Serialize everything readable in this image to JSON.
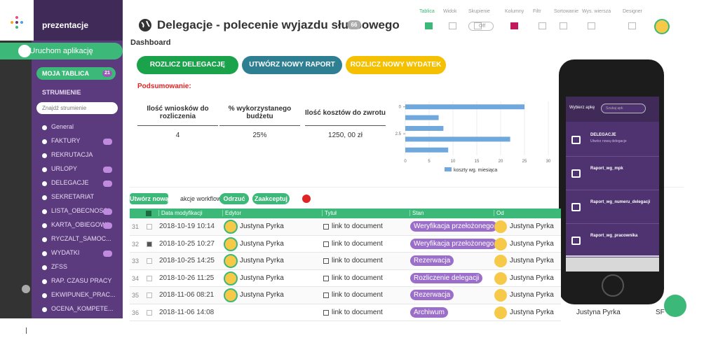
{
  "sidebar": {
    "app_name": "prezentacje",
    "launch": "Uruchom aplikację",
    "my_board": "MOJA TABLICA",
    "my_board_count": "21",
    "streams_label": "STRUMIENIE",
    "search_placeholder": "Znajdź strumienie",
    "streams": [
      {
        "name": "General"
      },
      {
        "name": "FAKTURY",
        "badge": true
      },
      {
        "name": "REKRUTACJA"
      },
      {
        "name": "URLOPY",
        "badge": true
      },
      {
        "name": "DELEGACJE",
        "badge": true
      },
      {
        "name": "SEKRETARIAT"
      },
      {
        "name": "LISTA_OBECNOSCI",
        "badge": true
      },
      {
        "name": "KARTA_OBIEGOWA",
        "badge": true
      },
      {
        "name": "RYCZALT_SAMOC..."
      },
      {
        "name": "WYDATKI",
        "badge": true
      },
      {
        "name": "ZFSS"
      },
      {
        "name": "RAP. CZASU PRACY"
      },
      {
        "name": "EKWIPUNEK_PRAC..."
      },
      {
        "name": "OCENA_KOMPETE..."
      }
    ]
  },
  "header": {
    "title": "Delegacje - polecenie wyjazdu służbowego",
    "count": "66",
    "toolbar": [
      "Tablica",
      "Widok",
      "Skupienie",
      "Kolumny",
      "Filtr",
      "Sortowanie",
      "Wys. wiersza",
      "Designer"
    ],
    "toggle": "Off"
  },
  "dashboard": {
    "title": "Dashboard",
    "buttons": [
      "ROZLICZ DELEGACJĘ",
      "UTWÓRZ NOWY RAPORT",
      "ROZLICZ NOWY WYDATEK"
    ],
    "summary_label": "Podsumowanie:",
    "summary": {
      "headers": [
        "Ilość wniosków do rozliczenia",
        "% wykorzystanego budżetu",
        "Ilość kosztów do zwrotu"
      ],
      "values": [
        "4",
        "25%",
        "1250, 00 zł"
      ]
    },
    "chart": {
      "type": "bar",
      "orientation": "horizontal",
      "values": [
        25,
        7,
        8,
        22,
        9
      ],
      "color": "#6fa8dc",
      "xlim": [
        0,
        30
      ],
      "xticks": [
        0,
        5,
        10,
        15,
        20,
        25,
        30
      ],
      "ylim": [
        -0.5,
        4.5
      ],
      "yticks": [
        0,
        2.5
      ],
      "legend": "koszty wg. miesiąca"
    }
  },
  "workflow": {
    "new": "Utwórz nową",
    "label": "akcje workflow:",
    "reject": "Odrzuć",
    "accept": "Zaakceptuj"
  },
  "table": {
    "headers": [
      "Data modyfikacji",
      "Edytor",
      "Tytuł",
      "Stan",
      "Od"
    ],
    "rows": [
      {
        "id": "31",
        "date": "2018-10-19 10:14",
        "editor": "Justyna Pyrka",
        "title": "link to document",
        "status": "Weryfikacja przełożonego",
        "from": "Justyna Pyrka"
      },
      {
        "id": "32",
        "checked": true,
        "date": "2018-10-25 10:27",
        "editor": "Justyna Pyrka",
        "title": "link to document",
        "status": "Weryfikacja przełożonego",
        "from": "Justyna Pyrka"
      },
      {
        "id": "33",
        "date": "2018-10-25 14:25",
        "editor": "Justyna Pyrka",
        "title": "link to document",
        "status": "Rezerwacja",
        "from": "Justyna Pyrka"
      },
      {
        "id": "34",
        "date": "2018-10-26 11:25",
        "editor": "Justyna Pyrka",
        "title": "link to document",
        "status": "Rozliczenie delegacji",
        "from": "Justyna Pyrka"
      },
      {
        "id": "35",
        "date": "2018-11-06 08:21",
        "editor": "Justyna Pyrka",
        "title": "link to document",
        "status": "Rezerwacja",
        "from": "Justyna Pyrka"
      },
      {
        "id": "36",
        "date": "2018-11-06 14:08",
        "title": "link to document",
        "status": "Archiwum",
        "from": "Justyna Pyrka",
        "extra": [
          "Justyna Pyrka",
          "SF"
        ]
      }
    ]
  },
  "phone": {
    "header": "Wybierz apkę",
    "search": "Szukaj apk",
    "items": [
      {
        "label": "DELEGACJE",
        "sub": "Utwórz nową delegacje"
      },
      {
        "label": "Raport_wg_mpk"
      },
      {
        "label": "Raport_wg_numeru_delegacji"
      },
      {
        "label": "Raport_wg_pracownika"
      }
    ]
  }
}
